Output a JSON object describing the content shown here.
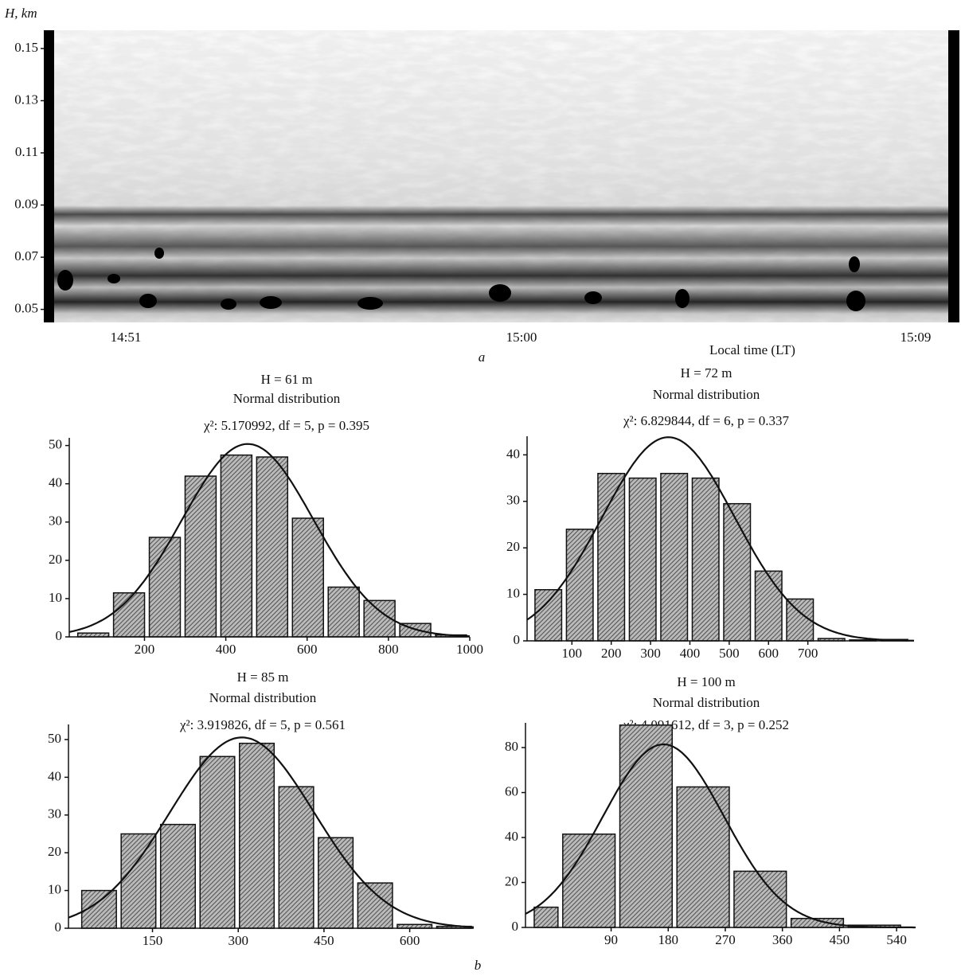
{
  "chart_data": [
    {
      "type": "echogram",
      "ylabel": "H, km",
      "xlabel": "Local time (LT)",
      "categories": [
        "14:51",
        "15:00",
        "15:09"
      ],
      "ylim": [
        0.045,
        0.157
      ],
      "yticks": [
        0.05,
        0.07,
        0.09,
        0.11,
        0.13,
        0.15
      ],
      "caption": "a"
    },
    {
      "type": "histogram",
      "title": [
        "H = 61 m",
        "Normal distribution",
        "χ²: 5.170992, df = 5, p = 0.395"
      ],
      "bins": [
        30,
        118,
        206,
        294,
        382,
        470,
        558,
        646,
        734,
        822,
        910,
        998
      ],
      "values": [
        1,
        11.5,
        26,
        42,
        47.5,
        47,
        31,
        13,
        9.5,
        3.5,
        0.5
      ],
      "xlim": [
        15,
        1000
      ],
      "xticks": [
        200,
        400,
        600,
        800,
        1000
      ],
      "ylim": [
        0,
        52
      ],
      "yticks": [
        0,
        10,
        20,
        30,
        40,
        50
      ],
      "color": "#555"
    },
    {
      "type": "histogram",
      "title": [
        "H = 72 m",
        "Normal distribution",
        "χ²: 6.829844, df = 6, p = 0.337"
      ],
      "bins": [
        0,
        80,
        160,
        240,
        320,
        400,
        480,
        560,
        640,
        720,
        800,
        880,
        960
      ],
      "values": [
        11,
        24,
        36,
        35,
        36,
        35,
        29.5,
        15,
        9,
        0.5,
        0.2,
        0.3
      ],
      "xlim": [
        -14,
        970
      ],
      "xticks": [
        100,
        200,
        300,
        400,
        500,
        600,
        700
      ],
      "ylim": [
        0,
        44
      ],
      "yticks": [
        0,
        10,
        20,
        30,
        40
      ],
      "color": "#555"
    },
    {
      "type": "histogram",
      "title": [
        "H = 85 m",
        "Normal distribution",
        "χ²: 3.919826, df = 5, p = 0.561"
      ],
      "bins": [
        22,
        91,
        160,
        229,
        298,
        367,
        436,
        505,
        574,
        643,
        712
      ],
      "values": [
        10,
        25,
        27.5,
        45.5,
        49,
        37.5,
        24,
        12,
        1,
        0.5
      ],
      "xlim": [
        3,
        712
      ],
      "xticks": [
        150,
        300,
        450,
        600
      ],
      "ylim": [
        0,
        54
      ],
      "yticks": [
        0,
        10,
        20,
        30,
        40,
        50
      ],
      "color": "#555"
    },
    {
      "type": "histogram",
      "title": [
        "H = 100 m",
        "Normal distribution",
        "χ²: 4.091612, df = 3, p = 0.252"
      ],
      "bins": [
        -35,
        10,
        100,
        190,
        280,
        370,
        460,
        550
      ],
      "values": [
        9,
        41.5,
        90,
        62.5,
        25,
        4,
        1
      ],
      "xlim": [
        -45,
        570
      ],
      "xticks": [
        90,
        180,
        270,
        360,
        450,
        540
      ],
      "ylim": [
        0,
        91
      ],
      "yticks": [
        0,
        20,
        40,
        60,
        80
      ],
      "color": "#555",
      "caption": "b"
    }
  ]
}
